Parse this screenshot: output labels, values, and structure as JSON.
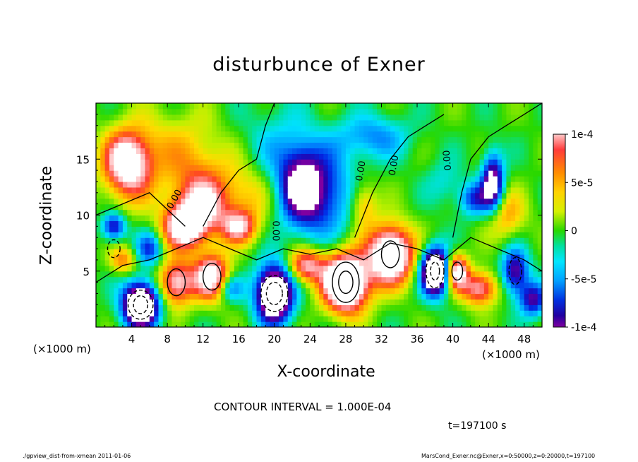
{
  "chart_data": {
    "type": "heatmap",
    "title": "disturbunce of Exner",
    "xlabel": "X-coordinate",
    "ylabel": "Z-coordinate",
    "x_unit": "(×1000 m)",
    "x_unit_right": "(×1000 m)",
    "xlim": [
      0,
      50
    ],
    "ylim": [
      0,
      20
    ],
    "x_ticks": [
      4,
      8,
      12,
      16,
      20,
      24,
      28,
      32,
      36,
      40,
      44,
      48
    ],
    "y_ticks": [
      5,
      10,
      15
    ],
    "x_tick_labels": [
      "4",
      "8",
      "12",
      "16",
      "20",
      "24",
      "28",
      "32",
      "36",
      "40",
      "44",
      "48"
    ],
    "y_tick_labels": [
      "5",
      "10",
      "15"
    ],
    "colorbar": {
      "range": [
        -0.0001,
        0.0001
      ],
      "tick_labels": [
        "1e-4",
        "5e-5",
        "0",
        "-5e-5",
        "-1e-4"
      ]
    },
    "contour_labels": [
      "0.00",
      "0.00",
      "0.00",
      "0.00",
      "0.00"
    ],
    "features": [
      {
        "x": 3.5,
        "z": 15,
        "value": 8e-05
      },
      {
        "x": 12,
        "z": 11,
        "value": 7e-05
      },
      {
        "x": 23,
        "z": 12.5,
        "value": -0.0001
      },
      {
        "x": 44.5,
        "z": 13,
        "value": -0.0001
      },
      {
        "x": 28,
        "z": 4,
        "value": 0.00012
      },
      {
        "x": 20,
        "z": 3,
        "value": -0.00011
      },
      {
        "x": 5,
        "z": 2,
        "value": -0.00012
      },
      {
        "x": 38,
        "z": 5,
        "value": -0.00012
      }
    ],
    "grid": false
  },
  "contour_interval": "CONTOUR INTERVAL = 1.000E-04",
  "time_label": "t=197100 s",
  "footer_left": "./gpview_dist-from-xmean  2011-01-06",
  "footer_right": "MarsCond_Exner.nc@Exner,x=0:50000,z=0:20000,t=197100"
}
